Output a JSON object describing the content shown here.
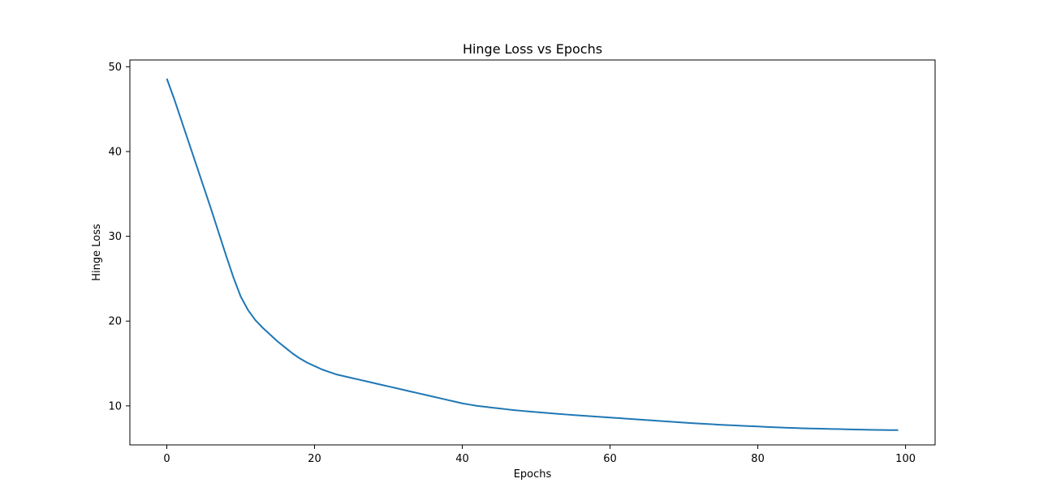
{
  "chart_data": {
    "type": "line",
    "title": "Hinge Loss vs Epochs",
    "xlabel": "Epochs",
    "ylabel": "Hinge Loss",
    "xlim": [
      -5,
      104
    ],
    "ylim": [
      5.4,
      50.8
    ],
    "xticks": [
      0,
      20,
      40,
      60,
      80,
      100
    ],
    "yticks": [
      10,
      20,
      30,
      40,
      50
    ],
    "grid": false,
    "line_color": "#1f77b4",
    "series": [
      {
        "x": [
          0,
          1,
          2,
          3,
          4,
          5,
          6,
          7,
          8,
          9,
          10,
          11,
          12,
          13,
          14,
          15,
          16,
          17,
          18,
          19,
          20,
          21,
          22,
          23,
          24,
          25,
          26,
          27,
          28,
          29,
          30,
          31,
          32,
          33,
          34,
          35,
          36,
          37,
          38,
          39,
          40,
          41,
          42,
          43,
          44,
          45,
          46,
          47,
          48,
          49,
          50,
          51,
          52,
          53,
          54,
          55,
          56,
          57,
          58,
          59,
          60,
          61,
          62,
          63,
          64,
          65,
          66,
          67,
          68,
          69,
          70,
          71,
          72,
          73,
          74,
          75,
          76,
          77,
          78,
          79,
          80,
          81,
          82,
          83,
          84,
          85,
          86,
          87,
          88,
          89,
          90,
          91,
          92,
          93,
          94,
          95,
          96,
          97,
          98,
          99
        ],
        "values": [
          48.6,
          46.2,
          43.6,
          41.0,
          38.4,
          35.8,
          33.2,
          30.5,
          27.8,
          25.2,
          22.9,
          21.3,
          20.1,
          19.2,
          18.4,
          17.6,
          16.9,
          16.2,
          15.6,
          15.1,
          14.7,
          14.3,
          14.0,
          13.7,
          13.5,
          13.3,
          13.1,
          12.9,
          12.7,
          12.5,
          12.3,
          12.1,
          11.9,
          11.7,
          11.5,
          11.3,
          11.1,
          10.9,
          10.7,
          10.5,
          10.3,
          10.15,
          10.0,
          9.9,
          9.8,
          9.7,
          9.6,
          9.5,
          9.42,
          9.34,
          9.27,
          9.2,
          9.13,
          9.06,
          8.99,
          8.93,
          8.87,
          8.81,
          8.75,
          8.69,
          8.63,
          8.57,
          8.51,
          8.45,
          8.39,
          8.33,
          8.27,
          8.21,
          8.15,
          8.09,
          8.03,
          7.97,
          7.92,
          7.87,
          7.82,
          7.77,
          7.73,
          7.69,
          7.65,
          7.61,
          7.57,
          7.53,
          7.49,
          7.45,
          7.42,
          7.39,
          7.36,
          7.34,
          7.32,
          7.3,
          7.28,
          7.26,
          7.24,
          7.22,
          7.2,
          7.18,
          7.17,
          7.16,
          7.15,
          7.15
        ]
      }
    ]
  }
}
